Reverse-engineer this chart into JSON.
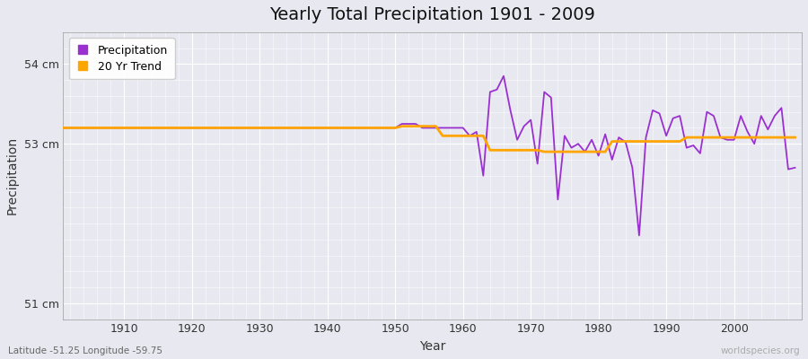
{
  "title": "Yearly Total Precipitation 1901 - 2009",
  "xlabel": "Year",
  "ylabel": "Precipitation",
  "subtitle": "Latitude -51.25 Longitude -59.75",
  "watermark": "worldspecies.org",
  "ylim": [
    50.8,
    54.4
  ],
  "yticks": [
    51,
    53,
    54
  ],
  "ytick_labels": [
    "51 cm",
    "53 cm",
    "54 cm"
  ],
  "precip_color": "#9b30d0",
  "trend_color": "#FFA500",
  "bg_color": "#e8e8f0",
  "fig_color": "#e8e8f0",
  "legend_entries": [
    "Precipitation",
    "20 Yr Trend"
  ],
  "years": [
    1901,
    1902,
    1903,
    1904,
    1905,
    1906,
    1907,
    1908,
    1909,
    1910,
    1911,
    1912,
    1913,
    1914,
    1915,
    1916,
    1917,
    1918,
    1919,
    1920,
    1921,
    1922,
    1923,
    1924,
    1925,
    1926,
    1927,
    1928,
    1929,
    1930,
    1931,
    1932,
    1933,
    1934,
    1935,
    1936,
    1937,
    1938,
    1939,
    1940,
    1941,
    1942,
    1943,
    1944,
    1945,
    1946,
    1947,
    1948,
    1949,
    1950,
    1951,
    1952,
    1953,
    1954,
    1955,
    1956,
    1957,
    1958,
    1959,
    1960,
    1961,
    1962,
    1963,
    1964,
    1965,
    1966,
    1967,
    1968,
    1969,
    1970,
    1971,
    1972,
    1973,
    1974,
    1975,
    1976,
    1977,
    1978,
    1979,
    1980,
    1981,
    1982,
    1983,
    1984,
    1985,
    1986,
    1987,
    1988,
    1989,
    1990,
    1991,
    1992,
    1993,
    1994,
    1995,
    1996,
    1997,
    1998,
    1999,
    2000,
    2001,
    2002,
    2003,
    2004,
    2005,
    2006,
    2007,
    2008,
    2009
  ],
  "precip": [
    53.2,
    53.2,
    53.2,
    53.2,
    53.2,
    53.2,
    53.2,
    53.2,
    53.2,
    53.2,
    53.2,
    53.2,
    53.2,
    53.2,
    53.2,
    53.2,
    53.2,
    53.2,
    53.2,
    53.2,
    53.2,
    53.2,
    53.2,
    53.2,
    53.2,
    53.2,
    53.2,
    53.2,
    53.2,
    53.2,
    53.2,
    53.2,
    53.2,
    53.2,
    53.2,
    53.2,
    53.2,
    53.2,
    53.2,
    53.2,
    53.2,
    53.2,
    53.2,
    53.2,
    53.2,
    53.2,
    53.2,
    53.2,
    53.2,
    53.2,
    53.25,
    53.25,
    53.25,
    53.2,
    53.2,
    53.2,
    53.2,
    53.2,
    53.2,
    53.2,
    53.1,
    53.15,
    52.6,
    53.65,
    53.68,
    53.85,
    53.42,
    53.05,
    53.22,
    53.3,
    52.75,
    53.65,
    53.58,
    52.3,
    53.1,
    52.95,
    53.0,
    52.9,
    53.05,
    52.85,
    53.12,
    52.8,
    53.08,
    53.02,
    52.7,
    51.85,
    53.08,
    53.42,
    53.38,
    53.1,
    53.32,
    53.35,
    52.95,
    52.98,
    52.88,
    53.4,
    53.35,
    53.08,
    53.05,
    53.05,
    53.35,
    53.15,
    53.0,
    53.35,
    53.18,
    53.35,
    53.45,
    52.68,
    52.7
  ],
  "trend_years": [
    1901,
    1950,
    1951,
    1956,
    1957,
    1963,
    1964,
    1971,
    1972,
    1981,
    1982,
    1992,
    1993,
    2009
  ],
  "trend_vals": [
    53.2,
    53.2,
    53.22,
    53.22,
    53.1,
    53.1,
    52.92,
    52.92,
    52.9,
    52.9,
    53.03,
    53.03,
    53.08,
    53.08
  ]
}
